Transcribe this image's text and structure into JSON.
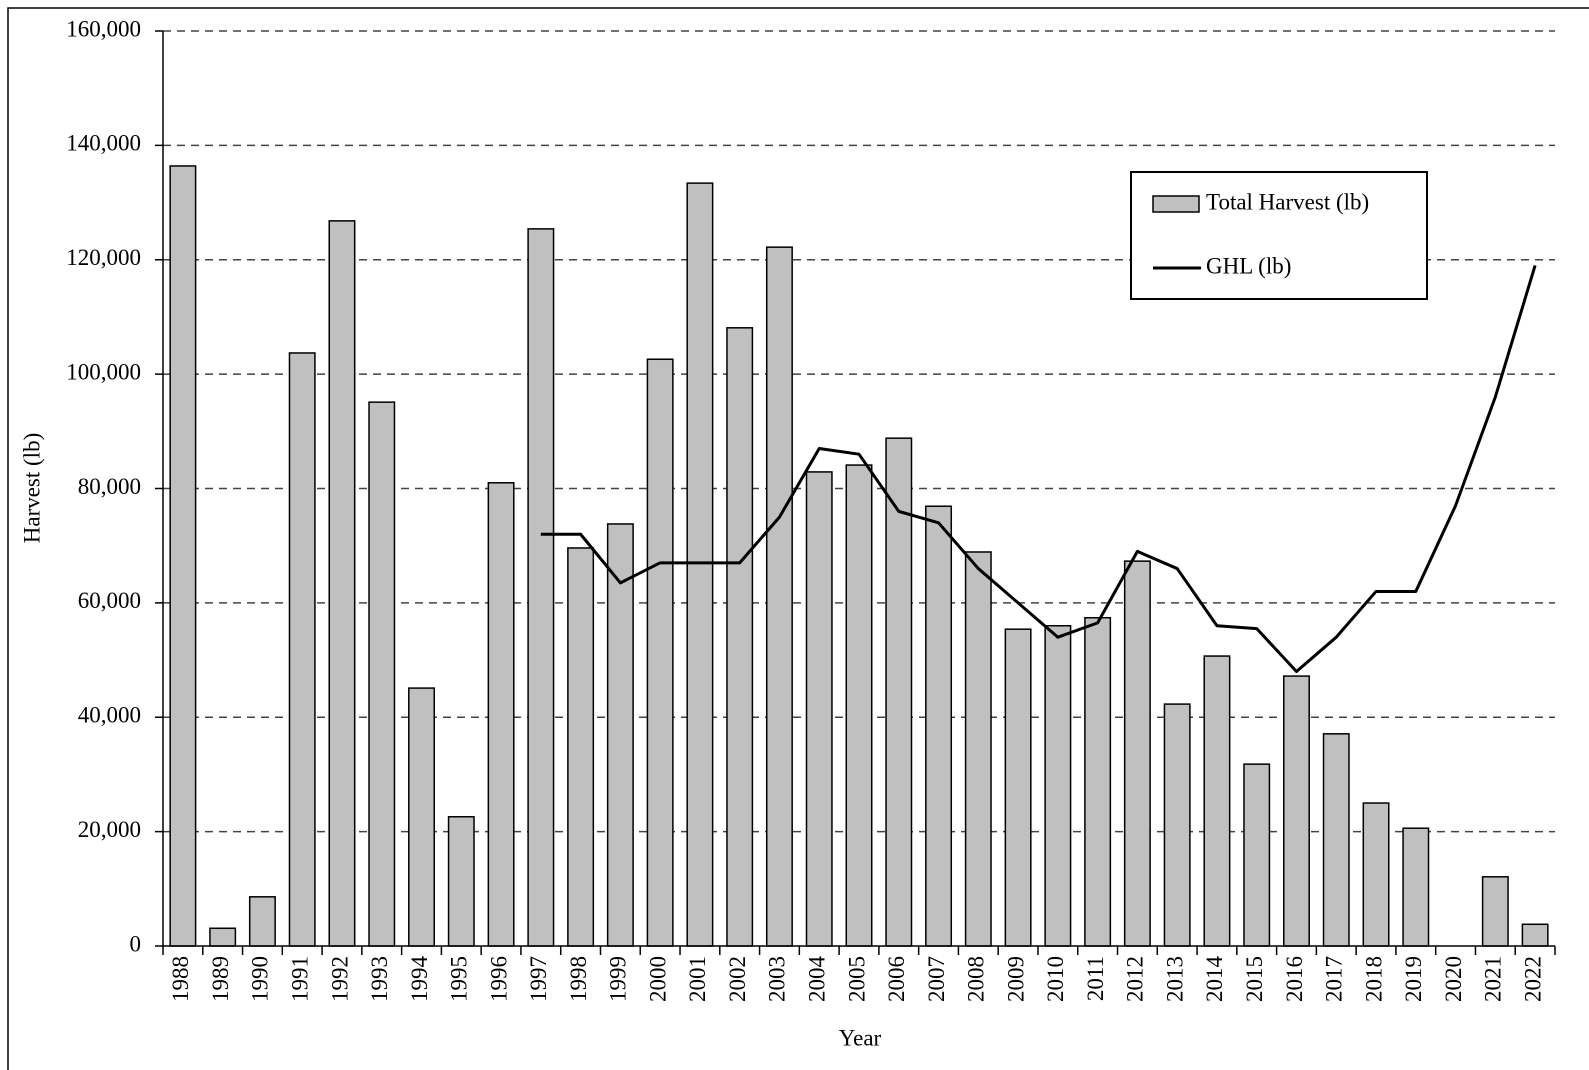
{
  "chart_data": {
    "type": "bar",
    "x_label": "Year",
    "y_label": "Harvest (lb)",
    "categories": [
      "1988",
      "1989",
      "1990",
      "1991",
      "1992",
      "1993",
      "1994",
      "1995",
      "1996",
      "1997",
      "1998",
      "1999",
      "2000",
      "2001",
      "2002",
      "2003",
      "2004",
      "2005",
      "2006",
      "2007",
      "2008",
      "2009",
      "2010",
      "2011",
      "2012",
      "2013",
      "2014",
      "2015",
      "2016",
      "2017",
      "2018",
      "2019",
      "2020",
      "2021",
      "2022"
    ],
    "series": [
      {
        "name": "Total Harvest (lb)",
        "type": "bar",
        "color": "#c0c0c0",
        "values": [
          136400,
          3100,
          8600,
          103700,
          126800,
          95100,
          45100,
          22600,
          81000,
          125400,
          69600,
          73800,
          102600,
          133400,
          108100,
          122200,
          82900,
          84100,
          88800,
          76900,
          68900,
          55400,
          56000,
          57400,
          67300,
          42300,
          50700,
          31800,
          47200,
          37100,
          25000,
          20600,
          0,
          12100,
          3800
        ]
      },
      {
        "name": "GHL (lb)",
        "type": "line",
        "color": "#000000",
        "values": [
          null,
          null,
          null,
          null,
          null,
          null,
          null,
          null,
          null,
          72000,
          72000,
          63500,
          67000,
          67000,
          67000,
          75000,
          87000,
          86000,
          76000,
          74000,
          66000,
          60000,
          54000,
          56500,
          69000,
          66000,
          56000,
          55500,
          48000,
          54000,
          62000,
          62000,
          77000,
          96000,
          119000
        ]
      }
    ],
    "ylim": [
      0,
      160000
    ],
    "yticks": [
      0,
      {
        "value": 20000,
        "label": "20,000"
      },
      {
        "value": 40000,
        "label": "40,000"
      },
      {
        "value": 60000,
        "label": "60,000"
      },
      {
        "value": 80000,
        "label": "80,000"
      },
      {
        "value": 100000,
        "label": "100,000"
      },
      {
        "value": 120000,
        "label": "120,000"
      },
      {
        "value": 140000,
        "label": "140,000"
      },
      {
        "value": 160000,
        "label": "160,000"
      }
    ],
    "grid": true,
    "legend": "upper right"
  }
}
